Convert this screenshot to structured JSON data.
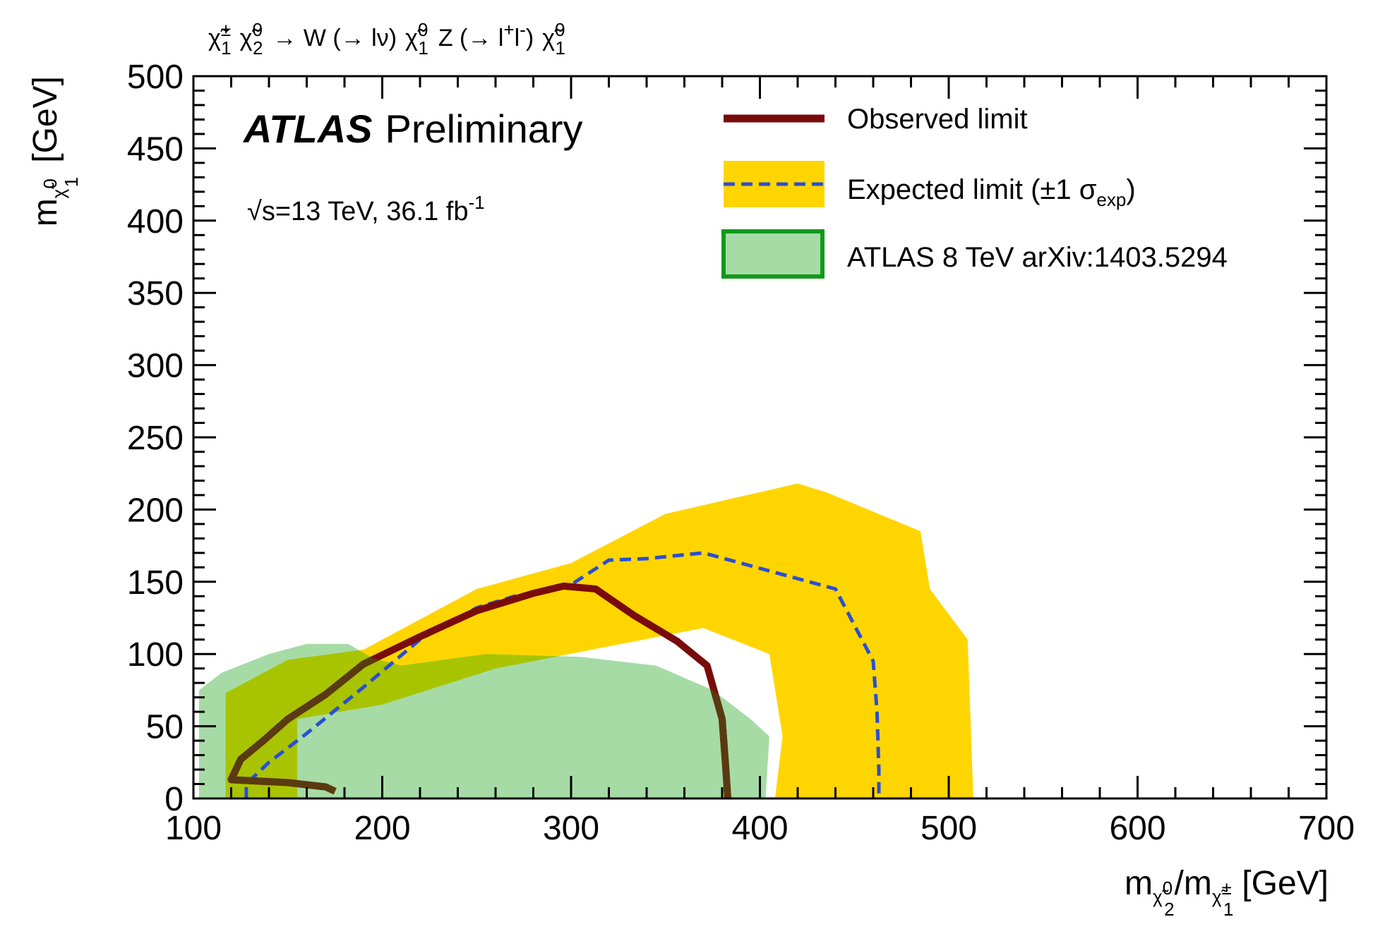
{
  "chart_data": {
    "type": "area",
    "title": "χ̃₁± χ̃₂⁰ → W (→ lν) χ̃₁⁰ Z (→ l⁺l⁻) χ̃₁⁰",
    "title_parts": {
      "text": "χ̃ χ̃ → W (→ lν) χ̃ Z (→ l l ) χ̃",
      "chi1_pm": "χ̃",
      "chi1_pm_sup": "±",
      "chi1_pm_sub": "1",
      "chi2_0": "χ̃",
      "chi2_0_sup": "0",
      "chi2_0_sub": "2",
      "arrow_w": "→ W (→ lν)",
      "chi1_0a": "χ̃",
      "chi1_0a_sup": "0",
      "chi1_0a_sub": "1",
      "z_part": "Z (→ l",
      "lplus_sup": "+",
      "l2": "l",
      "lminus_sup": "-",
      "close": ")",
      "chi1_0b": "χ̃",
      "chi1_0b_sup": "0",
      "chi1_0b_sub": "1"
    },
    "experiment_label": "ATLAS",
    "experiment_status": "Preliminary",
    "energy_label": "√s=13 TeV, 36.1 fb",
    "energy_label_sup": "-1",
    "xlabel": "m(χ̃₂⁰)/m(χ̃₁±) [GeV]",
    "xlabel_parts": {
      "m1": "m",
      "chi2_0": "χ̃",
      "chi2_0_sup": "0",
      "chi2_0_sub": "2",
      "slash_m": "/m",
      "chi1_pm": "χ̃",
      "chi1_pm_sup": "±",
      "chi1_pm_sub": "1",
      "unit": "[GeV]"
    },
    "ylabel": "m(χ̃₁⁰) [GeV]",
    "ylabel_parts": {
      "m": "m",
      "chi1_0": "χ̃",
      "chi1_0_sup": "0",
      "chi1_0_sub": "1",
      "unit": "[GeV]"
    },
    "xlim": [
      100,
      700
    ],
    "ylim": [
      0,
      500
    ],
    "x_ticks": [
      100,
      200,
      300,
      400,
      500,
      600,
      700
    ],
    "y_ticks": [
      0,
      50,
      100,
      150,
      200,
      250,
      300,
      350,
      400,
      450,
      500
    ],
    "x_minor_step": 20,
    "y_minor_step": 10,
    "legend": {
      "position": "top-right",
      "observed": "Observed limit",
      "expected": "Expected limit (±1 σ",
      "expected_sub": "exp",
      "expected_close": ")",
      "atlas8": "ATLAS 8 TeV arXiv:1403.5294"
    },
    "colors": {
      "observed": "#7a0b0b",
      "observed_overlap": "#5a3a10",
      "expected": "#2a4fd0",
      "band": "#ffd500",
      "atlas8_fill": "#a6dba6",
      "atlas8_edge": "#12991a",
      "overlap": "#a8c400"
    },
    "series": [
      {
        "name": "Expected ±1σ band",
        "kind": "band",
        "outer": [
          [
            117,
            0
          ],
          [
            117,
            73
          ],
          [
            150,
            96
          ],
          [
            190,
            103
          ],
          [
            250,
            145
          ],
          [
            300,
            163
          ],
          [
            350,
            197
          ],
          [
            420,
            218
          ],
          [
            435,
            212
          ],
          [
            485,
            185
          ],
          [
            490,
            145
          ],
          [
            510,
            110
          ],
          [
            513,
            0
          ]
        ],
        "inner_hole": [
          [
            155,
            0
          ],
          [
            155,
            55
          ],
          [
            200,
            65
          ],
          [
            260,
            90
          ],
          [
            370,
            118
          ],
          [
            405,
            100
          ],
          [
            412,
            43
          ],
          [
            408,
            0
          ]
        ]
      },
      {
        "name": "ATLAS 8 TeV arXiv:1403.5294",
        "kind": "excluded",
        "points": [
          [
            103,
            0
          ],
          [
            103,
            75
          ],
          [
            115,
            87
          ],
          [
            140,
            100
          ],
          [
            160,
            107
          ],
          [
            182,
            107
          ],
          [
            195,
            97
          ],
          [
            210,
            92
          ],
          [
            255,
            100
          ],
          [
            305,
            98
          ],
          [
            345,
            92
          ],
          [
            375,
            75
          ],
          [
            395,
            55
          ],
          [
            405,
            43
          ],
          [
            403,
            0
          ]
        ]
      },
      {
        "name": "Expected limit",
        "kind": "line",
        "points": [
          [
            128,
            0
          ],
          [
            128,
            10
          ],
          [
            140,
            25
          ],
          [
            160,
            45
          ],
          [
            190,
            77
          ],
          [
            220,
            110
          ],
          [
            250,
            132
          ],
          [
            270,
            140
          ],
          [
            300,
            148
          ],
          [
            320,
            165
          ],
          [
            340,
            166
          ],
          [
            370,
            170
          ],
          [
            440,
            145
          ],
          [
            450,
            120
          ],
          [
            460,
            95
          ],
          [
            462,
            60
          ],
          [
            463,
            20
          ],
          [
            463,
            0
          ]
        ]
      },
      {
        "name": "Observed limit",
        "kind": "line",
        "points": [
          [
            175,
            5
          ],
          [
            170,
            8
          ],
          [
            150,
            11
          ],
          [
            120,
            13
          ],
          [
            125,
            27
          ],
          [
            137,
            40
          ],
          [
            150,
            55
          ],
          [
            170,
            72
          ],
          [
            190,
            93
          ],
          [
            220,
            112
          ],
          [
            250,
            130
          ],
          [
            280,
            142
          ],
          [
            296,
            147
          ],
          [
            313,
            145
          ],
          [
            333,
            127
          ],
          [
            356,
            109
          ],
          [
            372,
            92
          ],
          [
            380,
            55
          ],
          [
            382,
            20
          ],
          [
            383,
            0
          ]
        ]
      }
    ]
  }
}
